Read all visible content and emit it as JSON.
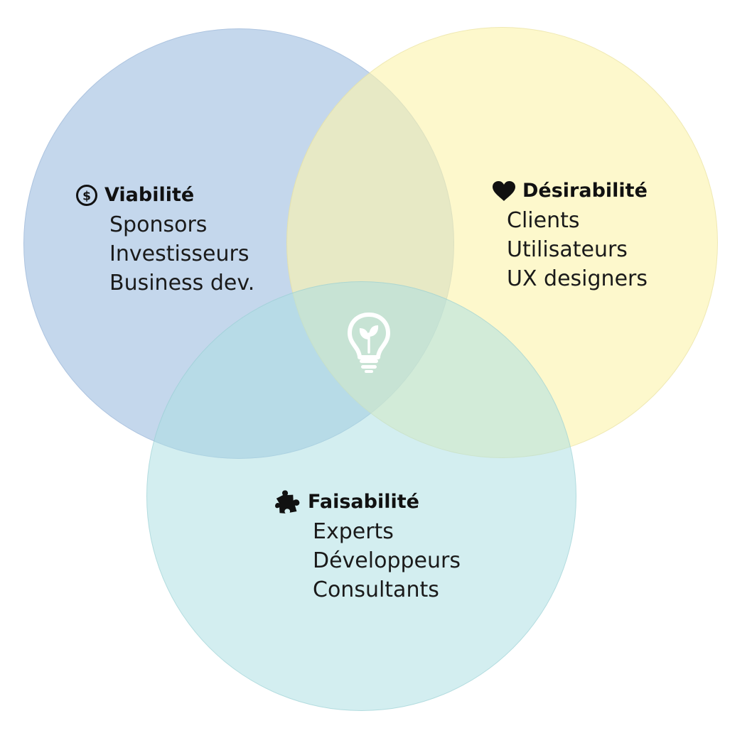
{
  "diagram": {
    "viability": {
      "title": "Viabilité",
      "icon": "dollar-circle-icon",
      "color": "#a0bee1",
      "items": [
        "Sponsors",
        "Investisseurs",
        "Business dev."
      ]
    },
    "desirability": {
      "title": "Désirabilité",
      "icon": "heart-icon",
      "color": "#fcf4ac",
      "items": [
        "Clients",
        "Utilisateurs",
        "UX designers"
      ]
    },
    "feasibility": {
      "title": "Faisabilité",
      "icon": "puzzle-piece-icon",
      "color": "#aadee2",
      "items": [
        "Experts",
        "Développeurs",
        "Consultants"
      ]
    },
    "center": {
      "icon": "lightbulb-leaf-icon",
      "icon_color": "#ffffff"
    }
  }
}
